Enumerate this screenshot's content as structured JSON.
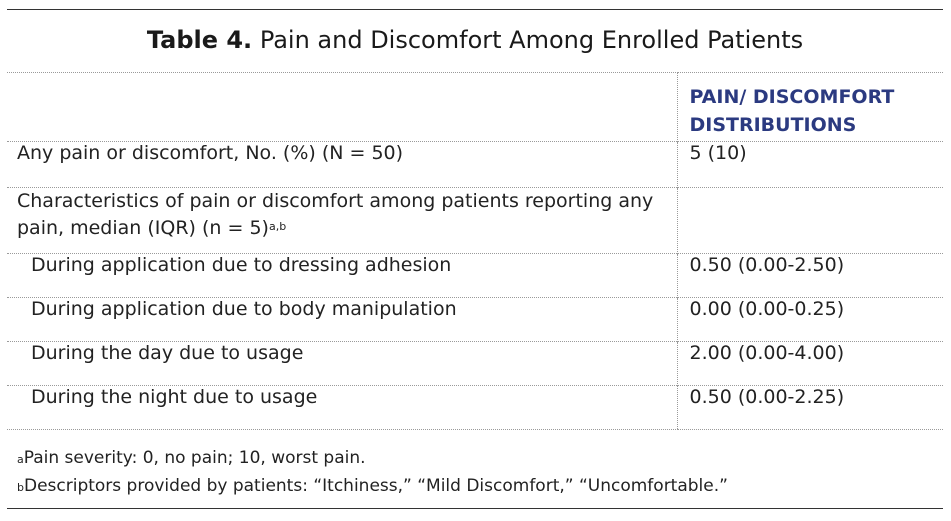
{
  "title": {
    "label": "Table 4.",
    "text": "Pain and Discomfort Among Enrolled Patients"
  },
  "header": {
    "col2": "PAIN/ DISCOMFORT DISTRIBUTIONS"
  },
  "rows": {
    "any_pain": {
      "label": "Any pain or discomfort, No. (%)  (N = 50)",
      "value": "5 (10)"
    },
    "characteristics": {
      "label": "Characteristics of pain or discomfort among patients reporting any pain, median (IQR)  (n = 5)",
      "sup": "a,b",
      "value": ""
    },
    "sub": [
      {
        "label": "During application due to dressing adhesion",
        "value": "0.50  (0.00-2.50)"
      },
      {
        "label": "During application due to body manipulation",
        "value": "0.00  (0.00-0.25)"
      },
      {
        "label": "During the day due to usage",
        "value": "2.00  (0.00-4.00)"
      },
      {
        "label": "During the night due to usage",
        "value": "0.50  (0.00-2.25)"
      }
    ]
  },
  "footnotes": [
    {
      "mark": "a",
      "text": "Pain severity: 0, no pain; 10, worst pain."
    },
    {
      "mark": "b",
      "text": "Descriptors provided by patients: “Itchiness,” “Mild Discomfort,” “Uncomfortable.”"
    }
  ]
}
